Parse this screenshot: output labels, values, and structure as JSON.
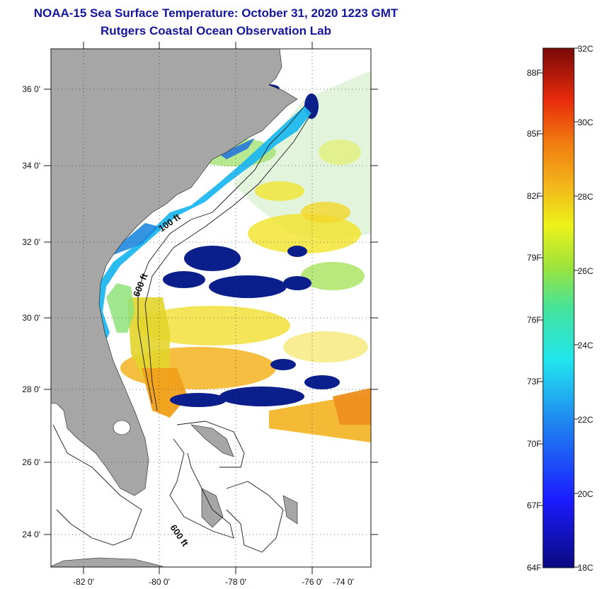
{
  "header": {
    "title": "NOAA-15 Sea Surface Temperature:  October 31, 2020 1223 GMT",
    "subtitle": "Rutgers Coastal Ocean Observation Lab"
  },
  "map": {
    "lon_ticks": [
      "-82 0'",
      "-80 0'",
      "-78 0'",
      "-76 0'",
      "-74 0'"
    ],
    "lat_ticks": [
      "36 0'",
      "34 0'",
      "32 0'",
      "30 0'",
      "28 0'",
      "26 0'",
      "24 0'"
    ],
    "isobath_labels": [
      "100 ft",
      "600 ft",
      "600 ft"
    ],
    "colors": {
      "land": "#a6a6a6",
      "water_no_data": "#ffffff",
      "cold": "#0a1f8c",
      "cool": "#1fb8ef",
      "warm": "#f2e21a",
      "hot": "#ee8e1d"
    }
  },
  "colorbar": {
    "fahrenheit_labels": [
      "88F",
      "85F",
      "82F",
      "79F",
      "76F",
      "73F",
      "70F",
      "67F",
      "64F"
    ],
    "celsius_labels": [
      "32C",
      "30C",
      "28C",
      "26C",
      "24C",
      "22C",
      "20C",
      "18C"
    ]
  }
}
